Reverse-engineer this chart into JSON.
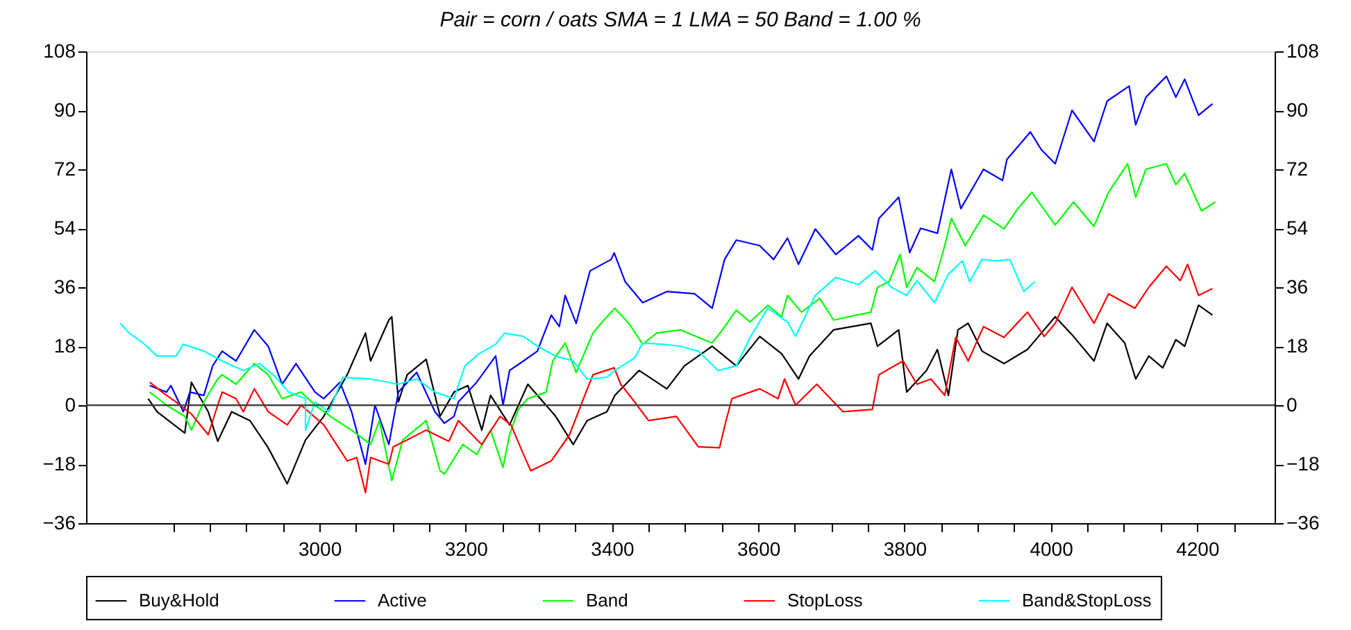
{
  "chart_data": {
    "type": "line",
    "title": "Pair =  corn / oats SMA = 1  LMA = 50 Band =  1.00 %",
    "xlim": [
      2681,
      4306
    ],
    "xticks": [
      {
        "value": 2800,
        "label": null
      },
      {
        "value": 2850,
        "label": null
      },
      {
        "value": 2900,
        "label": null
      },
      {
        "value": 2950,
        "label": null
      },
      3000,
      {
        "value": 3050,
        "label": null
      },
      {
        "value": 3100,
        "label": null
      },
      {
        "value": 3150,
        "label": null
      },
      3200,
      {
        "value": 3250,
        "label": null
      },
      {
        "value": 3300,
        "label": null
      },
      {
        "value": 3350,
        "label": null
      },
      3400,
      {
        "value": 3450,
        "label": null
      },
      {
        "value": 3500,
        "label": null
      },
      {
        "value": 3550,
        "label": null
      },
      3600,
      {
        "value": 3650,
        "label": null
      },
      {
        "value": 3700,
        "label": null
      },
      {
        "value": 3750,
        "label": null
      },
      3800,
      {
        "value": 3850,
        "label": null
      },
      {
        "value": 3900,
        "label": null
      },
      {
        "value": 3950,
        "label": null
      },
      4000,
      {
        "value": 4050,
        "label": null
      },
      {
        "value": 4100,
        "label": null
      },
      {
        "value": 4150,
        "label": null
      },
      4200,
      {
        "value": 4250,
        "label": null
      }
    ],
    "ylim": [
      -36,
      108
    ],
    "yticks": [
      -36,
      -18,
      0,
      18,
      36,
      54,
      72,
      90,
      108
    ],
    "y2lim": [
      -36,
      108
    ],
    "y2ticks": [
      -36,
      -18,
      0,
      18,
      36,
      54,
      72,
      90,
      108
    ],
    "grid": false,
    "legend": "bottom",
    "ref_lines": [
      {
        "axis": "y",
        "value": 0,
        "color": "#404040"
      }
    ],
    "series": [
      {
        "name": "Buy&Hold",
        "color": "#000000",
        "x": [
          2766,
          2778,
          2816,
          2825,
          2848,
          2861,
          2880,
          2905,
          2930,
          2956,
          2981,
          3006,
          3038,
          3063,
          3070,
          3095,
          3099,
          3108,
          3120,
          3146,
          3165,
          3184,
          3203,
          3222,
          3234,
          3260,
          3285,
          3323,
          3347,
          3366,
          3393,
          3404,
          3437,
          3475,
          3499,
          3537,
          3570,
          3602,
          3632,
          3655,
          3670,
          3703,
          3754,
          3763,
          3792,
          3803,
          3830,
          3845,
          3860,
          3873,
          3887,
          3906,
          3936,
          3968,
          3987,
          4006,
          4031,
          4059,
          4077,
          4101,
          4116,
          4134,
          4153,
          4171,
          4183,
          4202,
          4221
        ],
        "values": [
          2,
          -2,
          -8.5,
          7,
          -2,
          -11,
          -2,
          -4.7,
          -13,
          -24,
          -10.6,
          -3.4,
          9.3,
          22,
          13.5,
          26,
          27,
          1,
          9.3,
          14,
          -3.4,
          4,
          6,
          -7.6,
          3,
          -6,
          6.4,
          -3.4,
          -12,
          -4.7,
          -2,
          3,
          10.6,
          5,
          12,
          18,
          12,
          21,
          15.7,
          8,
          15,
          23,
          25,
          18,
          23,
          4,
          10.6,
          17,
          3,
          23,
          25,
          16.5,
          12.7,
          17,
          22,
          27,
          21,
          13.5,
          25,
          19,
          8,
          15,
          11.4,
          20,
          18,
          30.5,
          27.5
        ]
      },
      {
        "name": "Active",
        "color": "#0000ff",
        "x": [
          2768,
          2791,
          2797,
          2814,
          2823,
          2842,
          2854,
          2867,
          2886,
          2911,
          2930,
          2949,
          2968,
          2994,
          3006,
          3028,
          3044,
          3063,
          3076,
          3095,
          3108,
          3133,
          3158,
          3171,
          3184,
          3190,
          3215,
          3241,
          3251,
          3260,
          3279,
          3298,
          3317,
          3328,
          3336,
          3351,
          3370,
          3399,
          3403,
          3418,
          3442,
          3475,
          3513,
          3537,
          3554,
          3570,
          3602,
          3621,
          3640,
          3655,
          3678,
          3706,
          3737,
          3756,
          3765,
          3792,
          3807,
          3822,
          3845,
          3864,
          3877,
          3908,
          3934,
          3940,
          3972,
          3987,
          4006,
          4029,
          4059,
          4077,
          4107,
          4116,
          4130,
          4158,
          4171,
          4183,
          4202,
          4221
        ],
        "values": [
          6,
          4,
          6,
          -2,
          4,
          3,
          12,
          16.5,
          13.5,
          23,
          18,
          6.4,
          12.7,
          4,
          2,
          7,
          -2,
          -18,
          0,
          -12,
          4,
          10,
          -2,
          -5.5,
          -3.4,
          1,
          7,
          15,
          0,
          10.6,
          13.5,
          16.5,
          27.5,
          24,
          33.5,
          25,
          41,
          44.5,
          46.5,
          37.7,
          31.3,
          34.7,
          34,
          29.6,
          44.5,
          50.4,
          48.7,
          44.5,
          51,
          43,
          53.8,
          46,
          51.7,
          47.4,
          57,
          63.5,
          46.6,
          54,
          52.5,
          72,
          60,
          72,
          68.6,
          75,
          83.4,
          78,
          73.7,
          90,
          80.5,
          92.8,
          97.4,
          85.6,
          94,
          100.4,
          94,
          99.5,
          88.5,
          92
        ]
      },
      {
        "name": "Band",
        "color": "#00ff00",
        "x": [
          2768,
          2791,
          2816,
          2825,
          2842,
          2861,
          2867,
          2886,
          2911,
          2930,
          2949,
          2975,
          2994,
          3019,
          3044,
          3070,
          3082,
          3099,
          3114,
          3146,
          3165,
          3171,
          3196,
          3215,
          3234,
          3251,
          3260,
          3272,
          3285,
          3310,
          3319,
          3336,
          3351,
          3374,
          3389,
          3404,
          3423,
          3442,
          3461,
          3494,
          3518,
          3537,
          3551,
          3570,
          3589,
          3613,
          3632,
          3640,
          3659,
          3684,
          3703,
          3754,
          3763,
          3779,
          3794,
          3803,
          3817,
          3841,
          3855,
          3864,
          3883,
          3908,
          3936,
          3955,
          3974,
          4006,
          4031,
          4059,
          4079,
          4105,
          4116,
          4130,
          4158,
          4171,
          4183,
          4206,
          4225
        ],
        "values": [
          4,
          0,
          -3.4,
          -7.6,
          1,
          8,
          9.3,
          6.4,
          12.7,
          9.3,
          2,
          4,
          0,
          -4,
          -7.6,
          -12,
          -4.7,
          -23,
          -10.6,
          -4.7,
          -20,
          -21,
          -12,
          -15,
          -7.6,
          -19,
          -9,
          -1.3,
          2,
          4,
          13.5,
          19,
          10,
          22,
          26,
          29.6,
          25,
          18.6,
          22,
          23,
          20.7,
          19,
          23,
          29,
          25.4,
          30.5,
          27,
          33.5,
          28.4,
          32.6,
          26,
          28.4,
          36,
          37.7,
          46,
          36,
          42,
          37.7,
          48.7,
          57,
          48.7,
          58,
          53.8,
          60,
          65,
          55,
          62,
          54.6,
          65,
          73.7,
          63.5,
          72,
          73.7,
          67.3,
          70.7,
          59.3,
          62
        ]
      },
      {
        "name": "StopLoss",
        "color": "#ff0000",
        "x": [
          2768,
          2785,
          2804,
          2825,
          2848,
          2861,
          2867,
          2886,
          2896,
          2911,
          2930,
          2956,
          2975,
          3006,
          3038,
          3051,
          3063,
          3070,
          3095,
          3101,
          3120,
          3146,
          3177,
          3190,
          3222,
          3247,
          3262,
          3279,
          3289,
          3317,
          3342,
          3361,
          3374,
          3403,
          3412,
          3431,
          3450,
          3488,
          3518,
          3547,
          3556,
          3564,
          3602,
          3627,
          3636,
          3651,
          3680,
          3703,
          3716,
          3756,
          3765,
          3798,
          3817,
          3836,
          3855,
          3870,
          3887,
          3908,
          3936,
          3968,
          3991,
          4006,
          4029,
          4059,
          4079,
          4115,
          4134,
          4158,
          4177,
          4187,
          4202,
          4221
        ],
        "values": [
          7,
          4,
          1,
          -2.7,
          -9,
          0,
          4,
          2,
          -2,
          5,
          -2,
          -6,
          0,
          -6,
          -17,
          -16,
          -26.7,
          -16,
          -18,
          -12.7,
          -10.6,
          -7.6,
          -11,
          -4.7,
          -12,
          -3.4,
          -6,
          -15,
          -20,
          -17,
          -9,
          2,
          9.3,
          11.4,
          6.4,
          1,
          -4.7,
          -3.4,
          -12.7,
          -13,
          -4.7,
          2,
          5,
          2,
          8,
          0,
          6.4,
          1,
          -2,
          -1.3,
          9.3,
          13.5,
          6.4,
          8,
          3,
          20.7,
          13.5,
          24,
          20.7,
          28.4,
          21,
          25,
          36,
          25,
          34,
          29.6,
          36,
          42.4,
          38,
          43,
          33.5,
          35.6
        ]
      },
      {
        "name": "Band&StopLoss",
        "color": "#00ffff",
        "x": [
          2728,
          2740,
          2759,
          2778,
          2804,
          2814,
          2842,
          2867,
          2896,
          2918,
          2937,
          2958,
          2981,
          2981,
          2994,
          3013,
          3032,
          3070,
          3108,
          3133,
          3158,
          3184,
          3199,
          3218,
          3241,
          3253,
          3279,
          3298,
          3323,
          3347,
          3366,
          3393,
          3404,
          3431,
          3442,
          3469,
          3494,
          3518,
          3545,
          3570,
          3589,
          3613,
          3640,
          3651,
          3678,
          3706,
          3737,
          3760,
          3782,
          3803,
          3817,
          3841,
          3860,
          3879,
          3889,
          3906,
          3925,
          3944,
          3963,
          3978
        ],
        "values": [
          25,
          22,
          19,
          15,
          15,
          18.6,
          16.5,
          13.5,
          10.6,
          12.7,
          9.3,
          4,
          2,
          -7.6,
          1,
          -2,
          8.5,
          8,
          6.4,
          8,
          4,
          2,
          12,
          15.7,
          18.6,
          22,
          21,
          18,
          15,
          13.5,
          8,
          8.5,
          10.6,
          14.4,
          19,
          18.6,
          18,
          16.5,
          10.6,
          12,
          20.7,
          29.6,
          25.4,
          21,
          33.5,
          39,
          36.8,
          41,
          36,
          33.5,
          38,
          31.3,
          40,
          44,
          37.7,
          44.5,
          44,
          44.5,
          34.7,
          37.7
        ]
      }
    ]
  }
}
